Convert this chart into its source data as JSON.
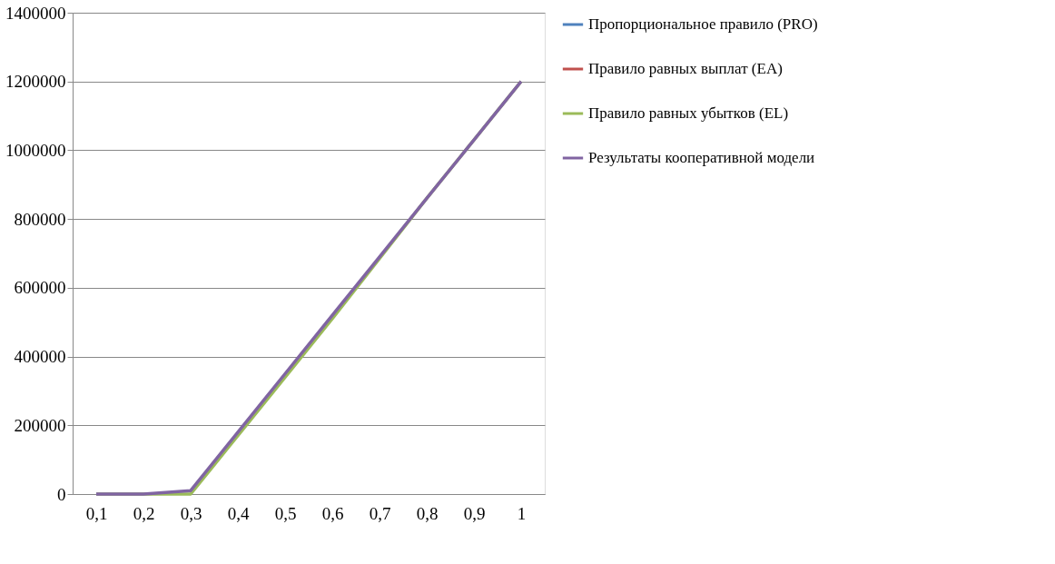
{
  "chart_data": {
    "type": "line",
    "categories": [
      "0,1",
      "0,2",
      "0,3",
      "0,4",
      "0,5",
      "0,6",
      "0,7",
      "0,8",
      "0,9",
      "1"
    ],
    "series": [
      {
        "name": "Пропорциональное правило (PRO)",
        "color": "#4f81bd",
        "values": [
          null,
          null,
          null,
          null,
          null,
          null,
          null,
          null,
          null,
          null
        ]
      },
      {
        "name": "Правило равных выплат (EA)",
        "color": "#c0504d",
        "values": [
          null,
          null,
          null,
          null,
          null,
          null,
          null,
          null,
          null,
          null
        ]
      },
      {
        "name": "Правило равных убытков (EL)",
        "color": "#9bbb59",
        "values": [
          0,
          0,
          0,
          170000,
          340000,
          510000,
          685000,
          860000,
          1030000,
          1200000
        ]
      },
      {
        "name": "Результаты кооперативной модели",
        "color": "#8064a2",
        "values": [
          0,
          0,
          10000,
          180000,
          350000,
          520000,
          690000,
          860000,
          1030000,
          1200000
        ]
      }
    ],
    "ylim": [
      0,
      1400000
    ],
    "yticks": [
      0,
      200000,
      400000,
      600000,
      800000,
      1000000,
      1200000,
      1400000
    ],
    "grid": "y",
    "legend": "right",
    "marker": "none",
    "line_style": "solid"
  }
}
